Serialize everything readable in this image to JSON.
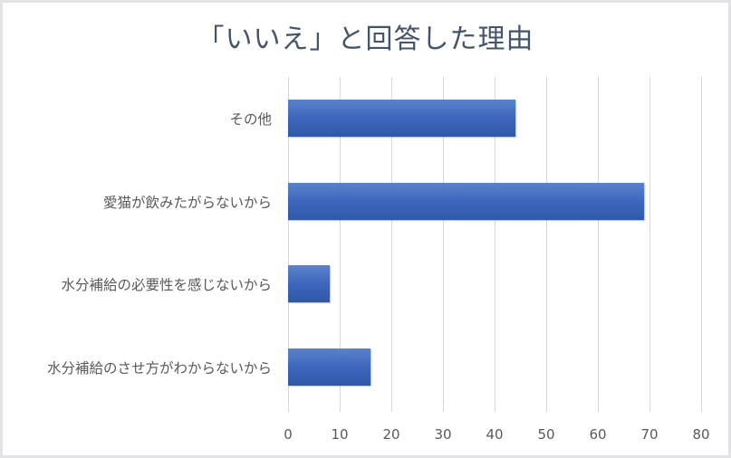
{
  "chart_data": {
    "type": "bar",
    "orientation": "horizontal",
    "title": "「いいえ」と回答した理由",
    "xlabel": "",
    "ylabel": "",
    "categories": [
      "その他",
      "愛猫が飲みたがらないから",
      "水分補給の必要性を感じないから",
      "水分補給のさせ方がわからないから"
    ],
    "values": [
      44,
      69,
      8,
      16
    ],
    "xlim": [
      0,
      80
    ],
    "xticks": [
      "0",
      "10",
      "20",
      "30",
      "40",
      "50",
      "60",
      "70",
      "80"
    ],
    "grid": true,
    "legend": null,
    "bar_color": "#4472c4"
  }
}
